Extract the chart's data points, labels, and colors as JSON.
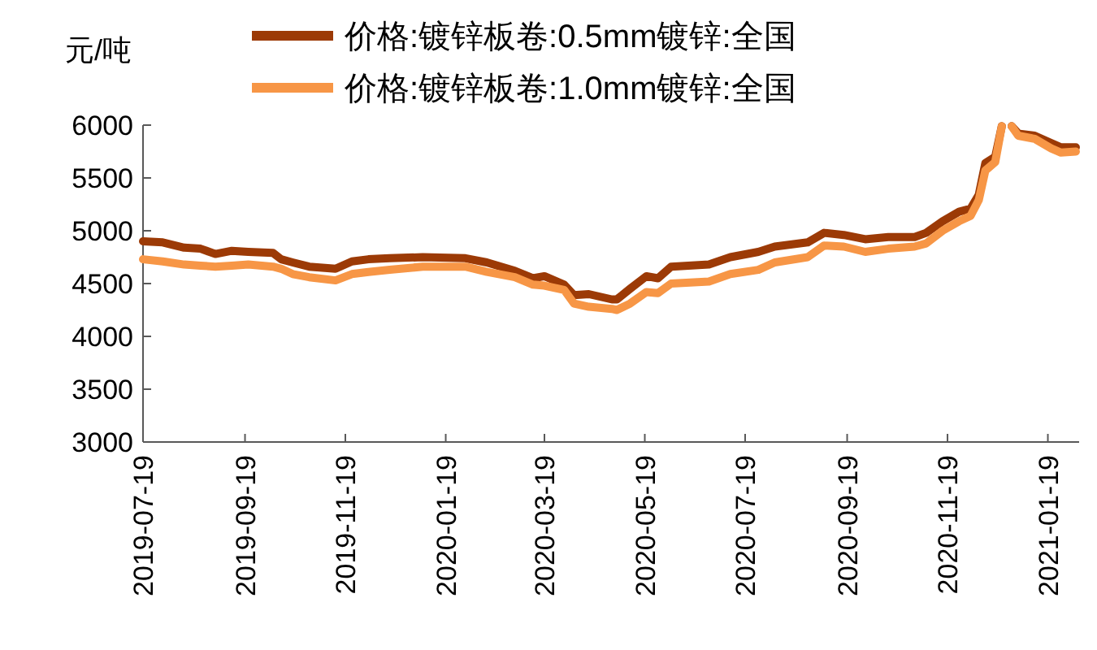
{
  "chart_data": {
    "type": "line",
    "ylabel": "元/吨",
    "legend": "top",
    "grid": false,
    "line_style": "solid",
    "marker": "none",
    "x": [
      "2019-07-19",
      "2019-07-31",
      "2019-08-13",
      "2019-08-23",
      "2019-09-01",
      "2019-09-11",
      "2019-09-21",
      "2019-10-06",
      "2019-10-11",
      "2019-10-18",
      "2019-10-28",
      "2019-11-13",
      "2019-11-23",
      "2019-12-03",
      "2019-12-16",
      "2020-01-05",
      "2020-01-31",
      "2020-02-13",
      "2020-03-01",
      "2020-03-12",
      "2020-03-19",
      "2020-03-31",
      "2020-04-06",
      "2020-04-15",
      "2020-04-29",
      "2020-05-02",
      "2020-05-10",
      "2020-05-20",
      "2020-05-27",
      "2020-06-04",
      "2020-06-27",
      "2020-07-10",
      "2020-07-27",
      "2020-08-06",
      "2020-08-26",
      "2020-09-05",
      "2020-09-17",
      "2020-09-30",
      "2020-10-14",
      "2020-10-30",
      "2020-11-06",
      "2020-11-16",
      "2020-11-26",
      "2020-12-03",
      "2020-12-08",
      "2020-12-12",
      "2020-12-18",
      "2020-12-22",
      "2020-12-25",
      "2020-12-28",
      "2021-01-01",
      "2021-01-11",
      "2021-01-21",
      "2021-01-27",
      "2021-02-05"
    ],
    "series": [
      {
        "name": "价格:镀锌板卷:0.5mm镀锌:全国",
        "color": "#9c3a06",
        "values": [
          4900,
          4890,
          4840,
          4830,
          4780,
          4810,
          4800,
          4790,
          4730,
          4700,
          4660,
          4640,
          4710,
          4730,
          4740,
          4750,
          4740,
          4700,
          4620,
          4550,
          4570,
          4490,
          4390,
          4400,
          4350,
          4350,
          4450,
          4570,
          4550,
          4660,
          4680,
          4750,
          4800,
          4850,
          4890,
          4980,
          4960,
          4920,
          4940,
          4940,
          4980,
          5090,
          5180,
          5210,
          5340,
          5640,
          5700,
          5990,
          null,
          5990,
          5920,
          5900,
          5830,
          5790,
          5790
        ]
      },
      {
        "name": "价格:镀锌板卷:1.0mm镀锌:全国",
        "color": "#f79646",
        "values": [
          4730,
          4710,
          4680,
          4670,
          4660,
          4670,
          4680,
          4660,
          4640,
          4590,
          4560,
          4530,
          4590,
          4610,
          4630,
          4660,
          4660,
          4610,
          4560,
          4490,
          4480,
          4440,
          4310,
          4280,
          4260,
          4250,
          4310,
          4420,
          4410,
          4500,
          4520,
          4590,
          4630,
          4700,
          4750,
          4860,
          4850,
          4800,
          4830,
          4850,
          4880,
          5000,
          5090,
          5140,
          5290,
          5570,
          5650,
          5990,
          null,
          5990,
          5900,
          5870,
          5780,
          5740,
          5750
        ]
      }
    ],
    "xlim": [
      "2019-07-19",
      "2021-02-07"
    ],
    "xticks": [
      "2019-07-19",
      "2019-09-19",
      "2019-11-19",
      "2020-01-19",
      "2020-03-19",
      "2020-05-19",
      "2020-07-19",
      "2020-09-19",
      "2020-11-19",
      "2021-01-19"
    ],
    "ylim": [
      3000,
      6000
    ],
    "yticks": [
      3000,
      3500,
      4000,
      4500,
      5000,
      5500,
      6000
    ]
  }
}
